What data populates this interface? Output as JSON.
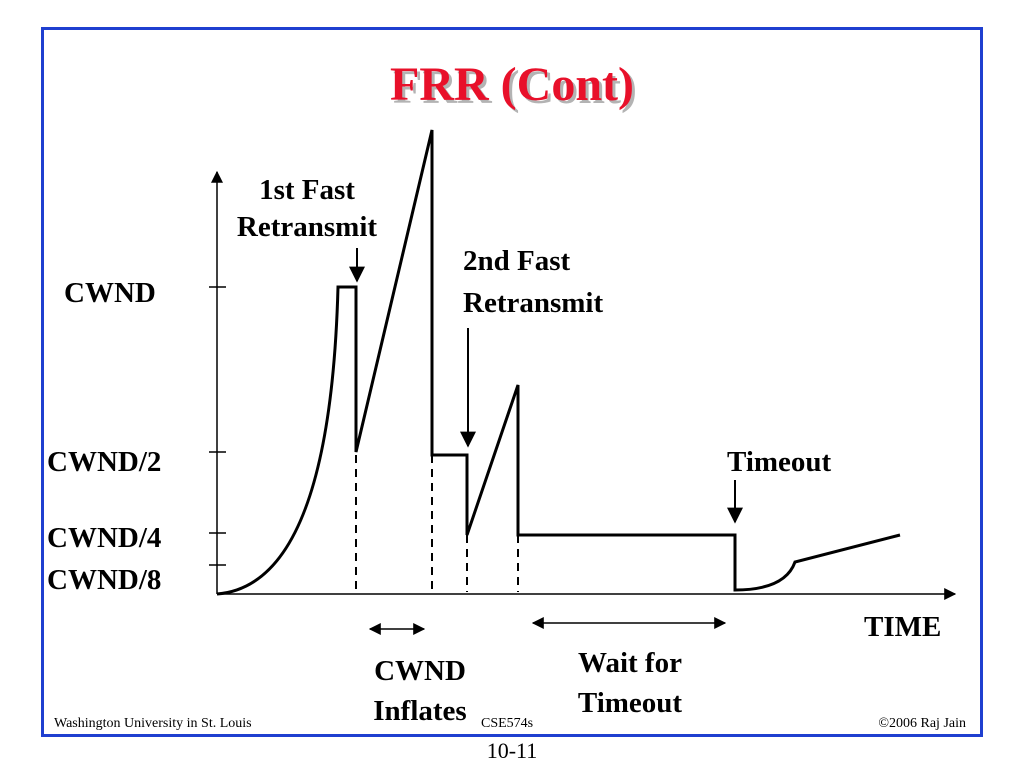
{
  "slide": {
    "title": "FRR (Cont)",
    "page_number": "10-11",
    "accent_color": "#e8102a",
    "frame_color": "#1f3fd0"
  },
  "diagram": {
    "y_labels": {
      "cwnd": "CWND",
      "cwnd_half": "CWND/2",
      "cwnd_quarter": "CWND/4",
      "cwnd_eighth": "CWND/8"
    },
    "x_label": "TIME",
    "annotations": {
      "first_fast_retransmit": [
        "1st Fast",
        "Retransmit"
      ],
      "second_fast_retransmit": [
        "2nd Fast",
        "Retransmit"
      ],
      "timeout": "Timeout",
      "cwnd_inflates": [
        "CWND",
        "Inflates"
      ],
      "wait_for_timeout": [
        "Wait for",
        "Timeout"
      ]
    }
  },
  "footer": {
    "left": "Washington University in St. Louis",
    "center": "CSE574s",
    "right": "©2006 Raj Jain"
  }
}
